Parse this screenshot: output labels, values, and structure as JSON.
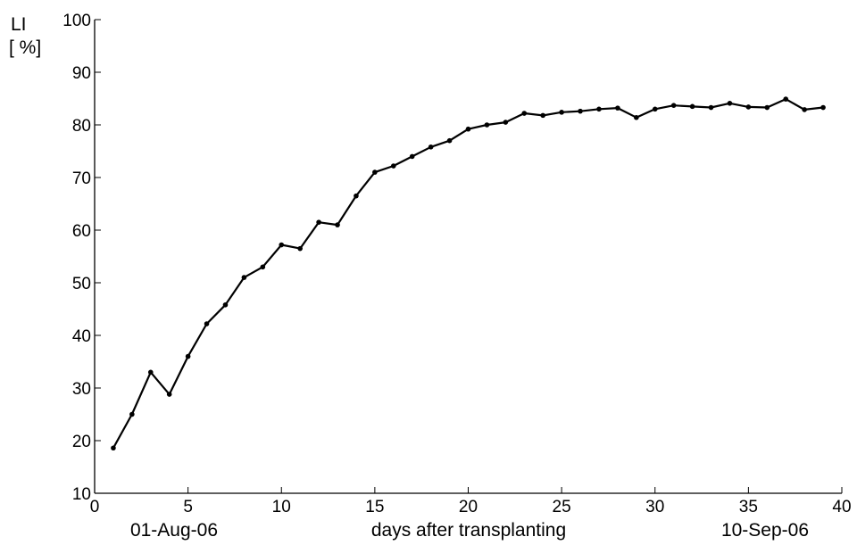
{
  "chart_data": {
    "type": "line",
    "title": "",
    "xlabel": "days after transplanting",
    "ylabel": "LI",
    "yunit": "[ %]",
    "xlim": [
      0,
      40
    ],
    "ylim": [
      10,
      100
    ],
    "xticks": [
      0,
      5,
      10,
      15,
      20,
      25,
      30,
      35,
      40
    ],
    "yticks": [
      10,
      20,
      30,
      40,
      50,
      60,
      70,
      80,
      90,
      100
    ],
    "grid": false,
    "legend": "none",
    "date_annotations": [
      {
        "x": 1,
        "text": "01-Aug-06"
      },
      {
        "x": 39,
        "text": "10-Sep-06"
      }
    ],
    "series": [
      {
        "color": "#000000",
        "marker": "dot",
        "x": [
          1,
          2,
          3,
          4,
          5,
          6,
          7,
          8,
          9,
          10,
          11,
          12,
          13,
          14,
          15,
          16,
          17,
          18,
          19,
          20,
          21,
          22,
          23,
          24,
          25,
          26,
          27,
          28,
          29,
          30,
          31,
          32,
          33,
          34,
          35,
          36,
          37,
          38,
          39
        ],
        "y": [
          18.6,
          25.0,
          33.0,
          28.8,
          36.0,
          42.2,
          45.8,
          51.0,
          53.0,
          57.2,
          56.5,
          61.5,
          61.0,
          66.5,
          71.0,
          72.2,
          74.0,
          75.8,
          77.0,
          79.2,
          80.0,
          80.5,
          82.2,
          81.8,
          82.4,
          82.6,
          83.0,
          83.2,
          81.4,
          83.0,
          83.7,
          83.5,
          83.3,
          84.1,
          83.4,
          83.3,
          84.9,
          82.9,
          83.3
        ]
      }
    ]
  }
}
